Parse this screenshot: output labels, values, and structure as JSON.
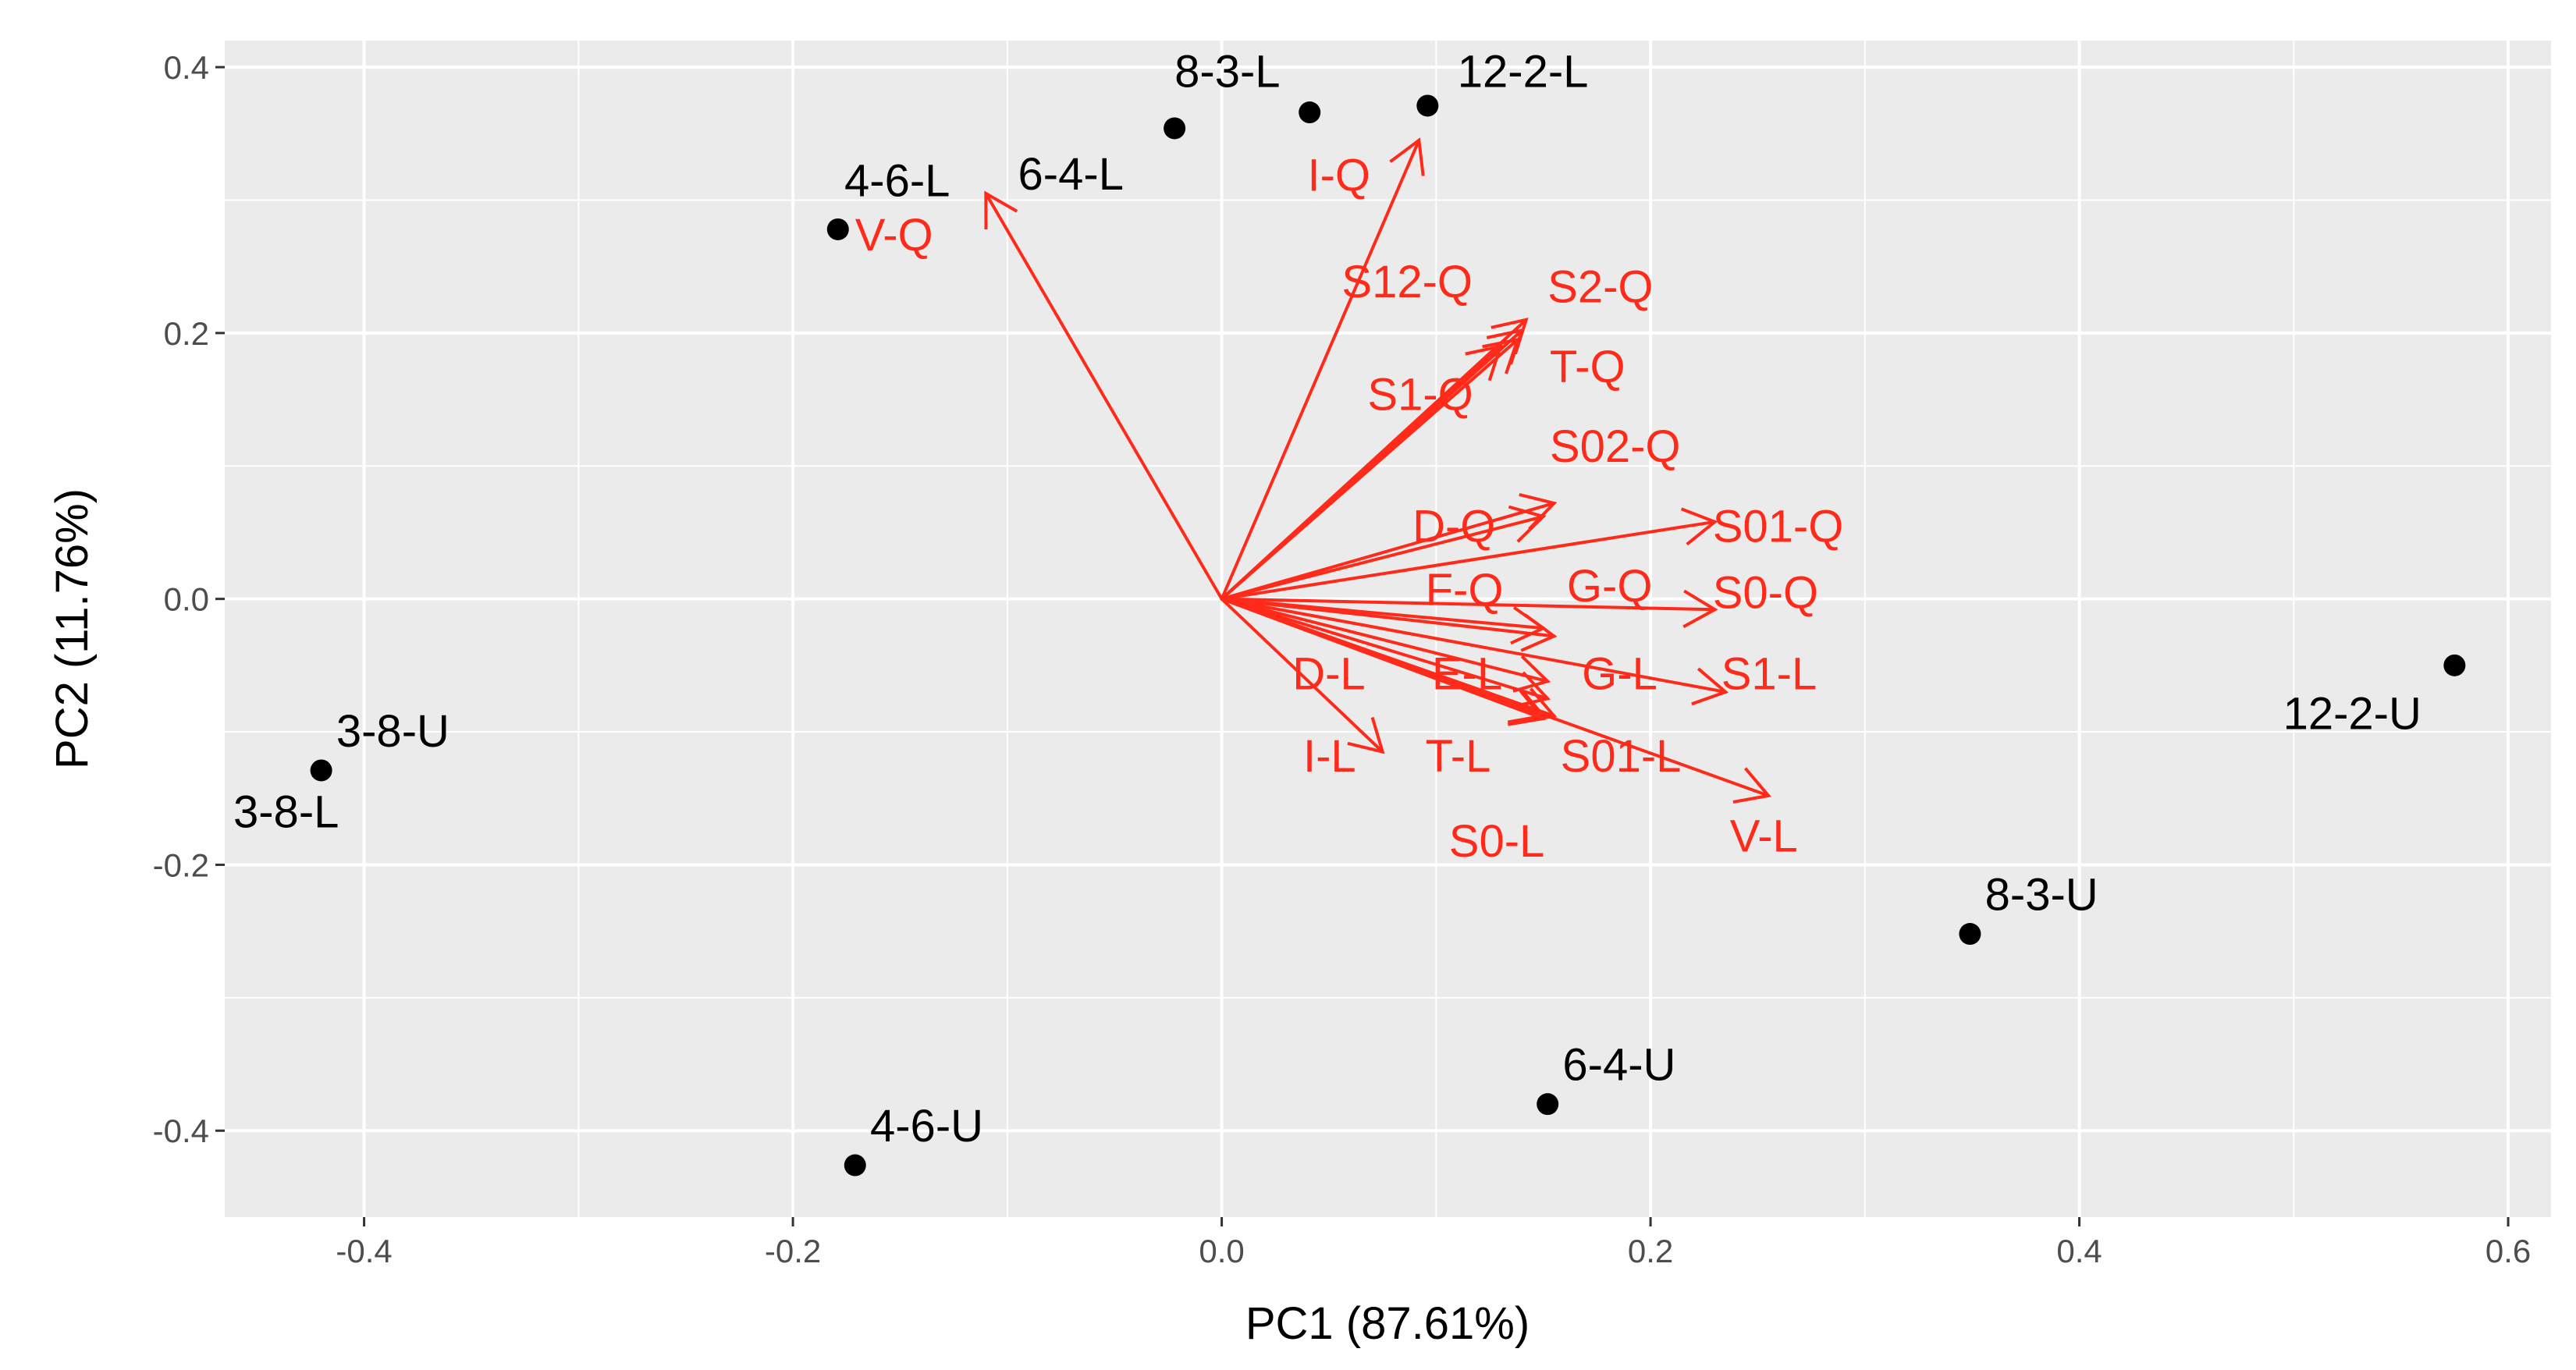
{
  "chart_data": {
    "type": "biplot",
    "xlabel": "PC1 (87.61%)",
    "ylabel": "PC2 (11.76%)",
    "xlim": [
      -0.465,
      0.62
    ],
    "ylim": [
      -0.465,
      0.42
    ],
    "x_ticks": [
      -0.4,
      -0.2,
      0.0,
      0.2,
      0.4,
      0.6
    ],
    "x_tick_labels": [
      "-0.4",
      "-0.2",
      "0.0",
      "0.2",
      "0.4",
      "0.6"
    ],
    "y_ticks": [
      -0.4,
      -0.2,
      0.0,
      0.2,
      0.4
    ],
    "y_tick_labels": [
      "-0.4",
      "-0.2",
      "0.0",
      "0.2",
      "0.4"
    ],
    "grid": true,
    "colors": {
      "background": "#ebebeb",
      "grid": "#ffffff",
      "points": "#000000",
      "arrows": "#ff2a1a"
    },
    "points": [
      {
        "label": "12-2-L",
        "x": 0.096,
        "y": 0.371,
        "lx": 0.11,
        "ly": 0.385,
        "anchor": "start"
      },
      {
        "label": "8-3-L",
        "x": 0.041,
        "y": 0.366,
        "lx": -0.022,
        "ly": 0.385,
        "anchor": "start"
      },
      {
        "label": "6-4-L",
        "x": -0.022,
        "y": 0.354,
        "lx": -0.095,
        "ly": 0.308,
        "anchor": "start"
      },
      {
        "label": "4-6-L",
        "x": -0.179,
        "y": 0.278,
        "lx": -0.176,
        "ly": 0.303,
        "anchor": "start"
      },
      {
        "label": "12-2-U",
        "x": 0.575,
        "y": -0.05,
        "lx": 0.495,
        "ly": -0.098,
        "anchor": "start"
      },
      {
        "label": "3-8-U",
        "x": -0.42,
        "y": -0.129,
        "lx": -0.413,
        "ly": -0.111,
        "anchor": "start"
      },
      {
        "label": "3-8-L",
        "x": -0.42,
        "y": -0.129,
        "lx": -0.461,
        "ly": -0.172,
        "anchor": "start"
      },
      {
        "label": "8-3-U",
        "x": 0.349,
        "y": -0.252,
        "lx": 0.356,
        "ly": -0.234,
        "anchor": "start"
      },
      {
        "label": "6-4-U",
        "x": 0.152,
        "y": -0.38,
        "lx": 0.159,
        "ly": -0.362,
        "anchor": "start"
      },
      {
        "label": "4-6-U",
        "x": -0.171,
        "y": -0.426,
        "lx": -0.164,
        "ly": -0.408,
        "anchor": "start"
      }
    ],
    "arrows": [
      {
        "label": "I-Q",
        "x": 0.092,
        "y": 0.345,
        "lx": 0.04,
        "ly": 0.307
      },
      {
        "label": "V-Q",
        "x": -0.11,
        "y": 0.305,
        "lx": -0.171,
        "ly": 0.262
      },
      {
        "label": "S12-Q",
        "x": 0.142,
        "y": 0.21,
        "lx": 0.056,
        "ly": 0.227
      },
      {
        "label": "S2-Q",
        "x": 0.14,
        "y": 0.202,
        "lx": 0.152,
        "ly": 0.223
      },
      {
        "label": "T-Q",
        "x": 0.138,
        "y": 0.195,
        "lx": 0.153,
        "ly": 0.163
      },
      {
        "label": "S1-Q",
        "x": 0.13,
        "y": 0.19,
        "lx": 0.068,
        "ly": 0.142
      },
      {
        "label": "S02-Q",
        "x": 0.155,
        "y": 0.072,
        "lx": 0.153,
        "ly": 0.103
      },
      {
        "label": "D-Q",
        "x": 0.15,
        "y": 0.062,
        "lx": 0.089,
        "ly": 0.043
      },
      {
        "label": "S01-Q",
        "x": 0.23,
        "y": 0.058,
        "lx": 0.229,
        "ly": 0.043
      },
      {
        "label": "F-Q",
        "x": 0.155,
        "y": -0.028,
        "lx": 0.095,
        "ly": -0.005
      },
      {
        "label": "S0-Q",
        "x": 0.23,
        "y": -0.008,
        "lx": 0.229,
        "ly": -0.007
      },
      {
        "label": "G-Q",
        "x": 0.15,
        "y": -0.022,
        "lx": 0.161,
        "ly": -0.002
      },
      {
        "label": "E-L",
        "x": 0.152,
        "y": -0.062,
        "lx": 0.098,
        "ly": -0.068
      },
      {
        "label": "D-L",
        "x": 0.15,
        "y": -0.09,
        "lx": 0.033,
        "ly": -0.068
      },
      {
        "label": "G-L",
        "x": 0.152,
        "y": -0.075,
        "lx": 0.168,
        "ly": -0.068
      },
      {
        "label": "S1-L",
        "x": 0.235,
        "y": -0.07,
        "lx": 0.233,
        "ly": -0.068
      },
      {
        "label": "I-L",
        "x": 0.075,
        "y": -0.115,
        "lx": 0.038,
        "ly": -0.13
      },
      {
        "label": "T-L",
        "x": 0.15,
        "y": -0.088,
        "lx": 0.095,
        "ly": -0.13
      },
      {
        "label": "S01-L",
        "x": 0.155,
        "y": -0.088,
        "lx": 0.158,
        "ly": -0.13
      },
      {
        "label": "V-L",
        "x": 0.255,
        "y": -0.148,
        "lx": 0.237,
        "ly": -0.19
      },
      {
        "label": "S0-L",
        "x": 0.15,
        "y": -0.088,
        "lx": 0.106,
        "ly": -0.194
      }
    ]
  }
}
